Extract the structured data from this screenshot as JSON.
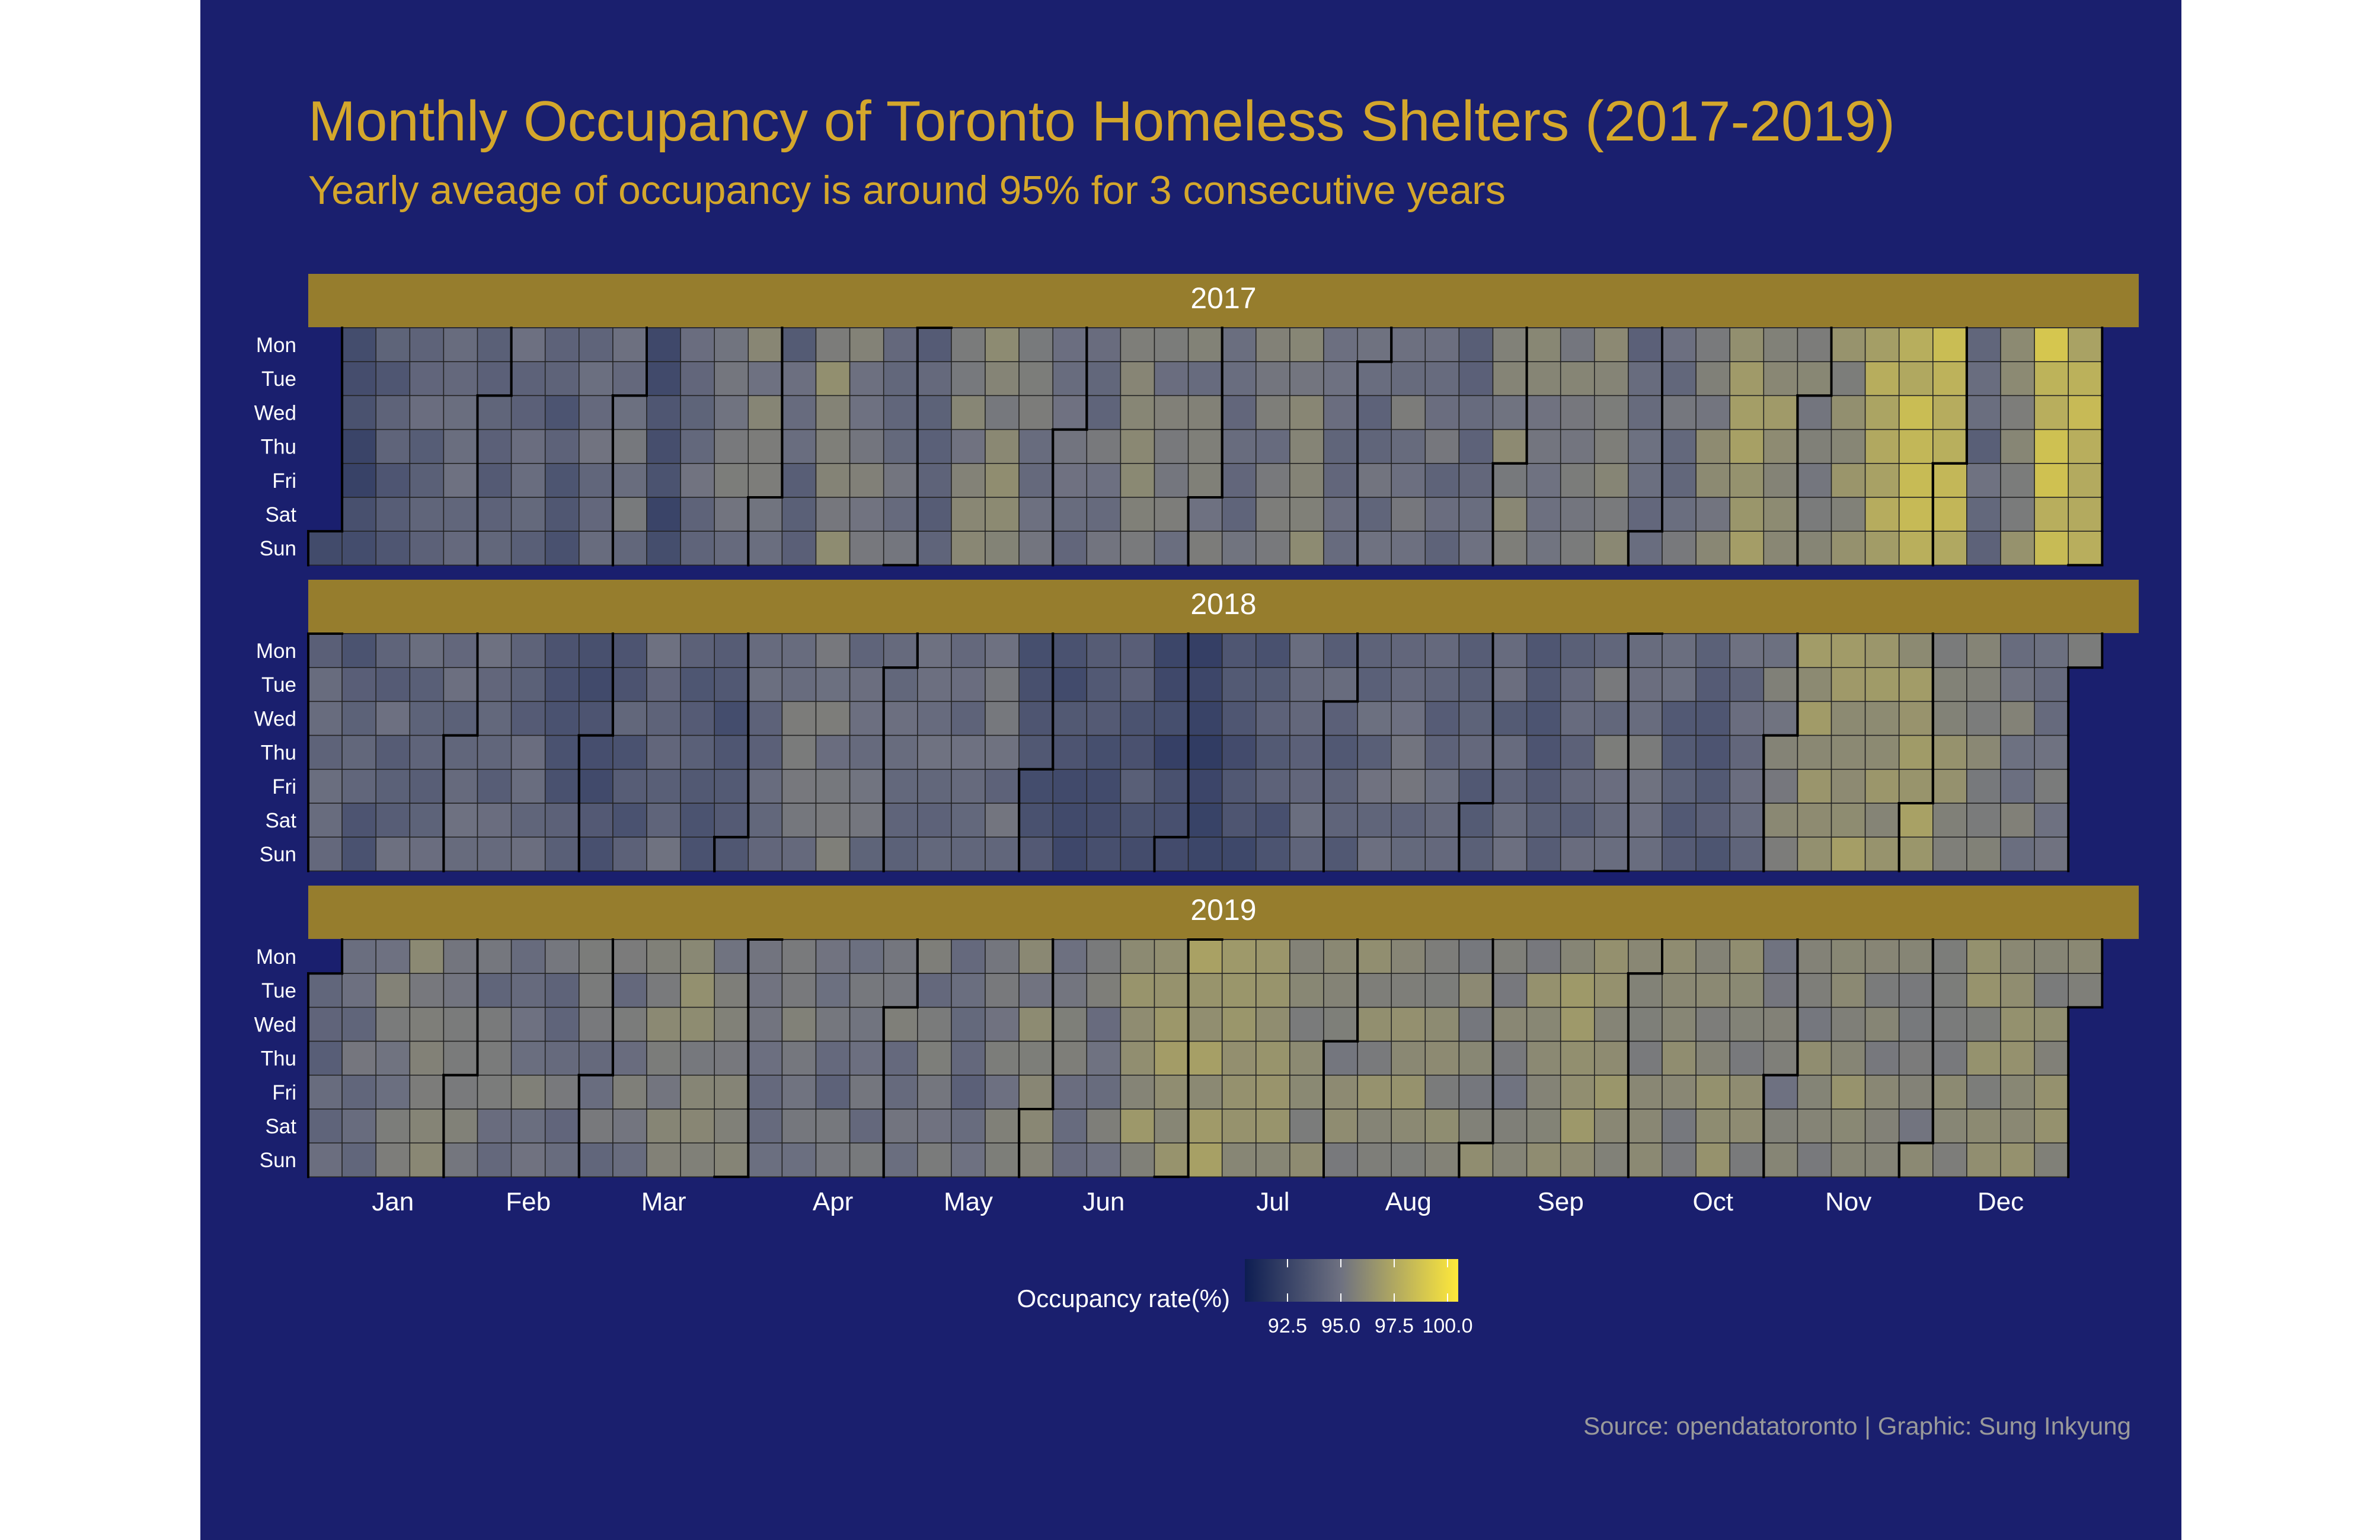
{
  "title": "Monthly Occupancy of Toronto Homeless Shelters (2017-2019)",
  "subtitle": "Yearly aveage of occupancy is around 95% for 3 consecutive years",
  "caption": "Source: opendatatoronto | Graphic: Sung Inkyung",
  "colors": {
    "background": "#1a1f6e",
    "strip": "#967d2d",
    "title": "#d4a72c",
    "low": "#0d1d52",
    "mid": "#6e7181",
    "high": "#ffe93a"
  },
  "chart_data": {
    "type": "heatmap",
    "facets": [
      "2017",
      "2018",
      "2019"
    ],
    "weekdays": [
      "Mon",
      "Tue",
      "Wed",
      "Thu",
      "Fri",
      "Sat",
      "Sun"
    ],
    "months": [
      "Jan",
      "Feb",
      "Mar",
      "Apr",
      "May",
      "Jun",
      "Jul",
      "Aug",
      "Sep",
      "Oct",
      "Nov",
      "Dec"
    ],
    "legend": {
      "title": "Occupancy rate(%)",
      "min": 90.5,
      "max": 100.5,
      "ticks": [
        "92.5",
        "95.0",
        "97.5",
        "100.0"
      ]
    },
    "weekly_mean_occupancy": {
      "2017": [
        93.5,
        92.8,
        93.8,
        94.3,
        94.6,
        94.2,
        94.5,
        93.7,
        94.7,
        95.0,
        93.1,
        94.6,
        95.1,
        95.4,
        94.3,
        95.8,
        95.4,
        94.7,
        94.2,
        95.6,
        95.9,
        95.1,
        95.0,
        94.9,
        95.6,
        95.4,
        95.2,
        94.8,
        95.2,
        95.7,
        94.5,
        94.6,
        95.0,
        94.8,
        94.5,
        95.6,
        95.4,
        95.5,
        95.7,
        94.6,
        94.8,
        95.7,
        96.6,
        96.3,
        95.4,
        96.1,
        97.4,
        98.1,
        98.1,
        94.5,
        96.0,
        98.3,
        97.8,
        96.3,
        95.9,
        94.5,
        95.0,
        94.3
      ],
      "2018": [
        94.3,
        93.9,
        94.4,
        94.3,
        94.5,
        94.5,
        94.3,
        93.8,
        93.2,
        93.9,
        94.6,
        93.8,
        93.3,
        94.4,
        95.0,
        95.2,
        94.7,
        94.4,
        94.6,
        94.8,
        94.7,
        93.6,
        93.2,
        93.4,
        93.6,
        92.9,
        92.4,
        93.3,
        93.8,
        94.5,
        94.2,
        94.6,
        94.8,
        94.4,
        94.1,
        94.4,
        93.9,
        94.3,
        95.0,
        95.1,
        94.3,
        94.0,
        94.5,
        95.5,
        96.5,
        96.7,
        96.4,
        96.6,
        96.0,
        95.6,
        95.3,
        95.1,
        94.9,
        94.7,
        94.4,
        94.3,
        94.1,
        94.5
      ],
      "2019": [
        94.5,
        94.7,
        95.2,
        95.5,
        95.4,
        94.9,
        95.2,
        94.8,
        95.0,
        95.1,
        95.6,
        95.9,
        95.6,
        94.9,
        95.2,
        94.8,
        94.9,
        95.1,
        95.0,
        94.6,
        95.3,
        95.6,
        95.2,
        95.1,
        96.2,
        96.4,
        96.7,
        96.5,
        96.3,
        95.9,
        95.8,
        96.0,
        96.1,
        96.0,
        95.8,
        95.6,
        95.9,
        96.3,
        96.1,
        95.8,
        95.8,
        96.0,
        95.8,
        95.4,
        95.8,
        96.0,
        95.7,
        95.6,
        95.8,
        96.1,
        96.0,
        96.0,
        95.9,
        95.7,
        96.1,
        96.3,
        95.9,
        95.5
      ]
    }
  }
}
